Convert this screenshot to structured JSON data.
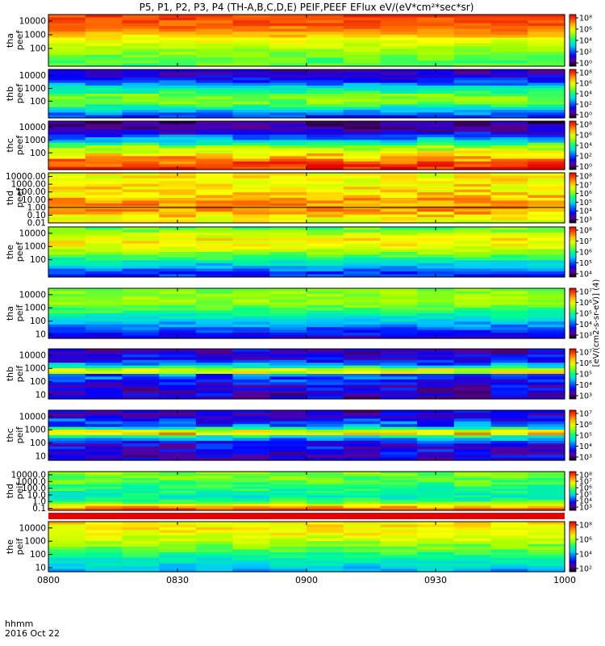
{
  "title": "P5, P1, P2, P3, P4 (TH-A,B,C,D,E) PEIF,PEEF EFlux eV/(eV*cm²*sec*sr)",
  "footer": {
    "time_format": "hhmm",
    "date": "2016 Oct 22"
  },
  "chart_data": {
    "type": "heatmap",
    "x": {
      "ticks": [
        "0800",
        "0830",
        "0900",
        "0930",
        "1000"
      ],
      "range": [
        "08:00",
        "10:00"
      ]
    },
    "colorbar_label": "[eV/(cm2-s-sr-eV)] (4)",
    "panels": [
      {
        "name": "tha peef",
        "ylabel": [
          "tha",
          "peef"
        ],
        "yticks": [
          "10000",
          "1000",
          "100"
        ],
        "ylim": [
          5,
          30000
        ],
        "scale": "log",
        "colorbar_ticks": [
          "10⁸",
          "10⁶",
          "10⁴",
          "10²",
          "10⁰"
        ],
        "profile": [
          [
            30000,
            0.92
          ],
          [
            4000,
            0.88
          ],
          [
            600,
            0.76
          ],
          [
            100,
            0.64
          ],
          [
            20,
            0.56
          ]
        ],
        "noise": 0.05,
        "line": null
      },
      {
        "name": "thb peef",
        "ylabel": [
          "thb",
          "peef"
        ],
        "yticks": [
          "10000",
          "1000",
          "100"
        ],
        "ylim": [
          5,
          30000
        ],
        "scale": "log",
        "colorbar_ticks": [
          "10⁸",
          "10⁶",
          "10⁴",
          "10²",
          "10⁰"
        ],
        "profile": [
          [
            30000,
            0.13
          ],
          [
            6000,
            0.2
          ],
          [
            1500,
            0.38
          ],
          [
            300,
            0.58
          ],
          [
            80,
            0.6
          ],
          [
            20,
            0.4
          ],
          [
            6,
            0.25
          ]
        ],
        "noise": 0.06,
        "line": null
      },
      {
        "name": "thc peef",
        "ylabel": [
          "thc",
          "peef"
        ],
        "yticks": [
          "10000",
          "1000",
          "100"
        ],
        "ylim": [
          5,
          30000
        ],
        "scale": "log",
        "colorbar_ticks": [
          "10⁸",
          "10⁶",
          "10⁴",
          "10²",
          "10⁰"
        ],
        "profile": [
          [
            30000,
            0.08
          ],
          [
            5000,
            0.15
          ],
          [
            1200,
            0.35
          ],
          [
            300,
            0.6
          ],
          [
            80,
            0.75
          ],
          [
            20,
            0.88
          ],
          [
            6,
            0.95
          ]
        ],
        "noise": 0.08,
        "line": null
      },
      {
        "name": "thd peef",
        "ylabel": [
          "thd",
          "peef"
        ],
        "yticks": [
          "10000.00",
          "1000.00",
          "100.00",
          "10.00",
          "1.00",
          "0.10",
          "0.01"
        ],
        "ylim": [
          0.01,
          30000
        ],
        "scale": "log",
        "colorbar_ticks": [
          "10⁸",
          "10⁷",
          "10⁶",
          "10⁵",
          "10⁴",
          "10³"
        ],
        "profile": [
          [
            30000,
            0.72
          ],
          [
            1000,
            0.74
          ],
          [
            50,
            0.76
          ],
          [
            5,
            0.82
          ],
          [
            0.5,
            0.84
          ],
          [
            0.01,
            0.7
          ]
        ],
        "noise": 0.07,
        "line": [
          1.0,
          1.0
        ]
      },
      {
        "name": "the peef",
        "ylabel": [
          "the",
          "peef"
        ],
        "yticks": [
          "10000",
          "1000",
          "100"
        ],
        "ylim": [
          5,
          30000
        ],
        "scale": "log",
        "colorbar_ticks": [
          "10⁸",
          "10⁷",
          "10⁶",
          "10⁵",
          "10⁴"
        ],
        "profile": [
          [
            30000,
            0.55
          ],
          [
            3000,
            0.75
          ],
          [
            800,
            0.7
          ],
          [
            200,
            0.55
          ],
          [
            50,
            0.42
          ],
          [
            10,
            0.25
          ]
        ],
        "noise": 0.06,
        "line": null
      },
      {
        "name": "tha peif",
        "ylabel": [
          "tha",
          "peif"
        ],
        "yticks": [
          "10000",
          "1000",
          "100",
          "10"
        ],
        "ylim": [
          5,
          30000
        ],
        "scale": "log",
        "colorbar_ticks": [
          "10⁷",
          "10⁶",
          "10⁵",
          "10⁴",
          "10³"
        ],
        "profile": [
          [
            30000,
            0.6
          ],
          [
            3000,
            0.62
          ],
          [
            400,
            0.5
          ],
          [
            60,
            0.35
          ],
          [
            10,
            0.22
          ],
          [
            5,
            0.15
          ]
        ],
        "noise": 0.05,
        "line": null
      },
      {
        "name": "thb peif",
        "ylabel": [
          "thb",
          "peif"
        ],
        "yticks": [
          "10000",
          "1000",
          "100",
          "10"
        ],
        "ylim": [
          5,
          30000
        ],
        "scale": "log",
        "colorbar_ticks": [
          "10⁷",
          "10⁶",
          "10⁵",
          "10⁴",
          "10³"
        ],
        "profile": [
          [
            30000,
            0.15
          ],
          [
            3000,
            0.22
          ],
          [
            1000,
            0.55
          ],
          [
            600,
            0.85
          ],
          [
            300,
            0.3
          ],
          [
            50,
            0.18
          ],
          [
            5,
            0.15
          ]
        ],
        "noise": 0.1,
        "line": null
      },
      {
        "name": "thc peif",
        "ylabel": [
          "thc",
          "peif"
        ],
        "yticks": [
          "10000",
          "1000",
          "100",
          "10"
        ],
        "ylim": [
          5,
          30000
        ],
        "scale": "log",
        "colorbar_ticks": [
          "10⁷",
          "10⁶",
          "10⁵",
          "10⁴",
          "10³"
        ],
        "profile": [
          [
            30000,
            0.15
          ],
          [
            2000,
            0.3
          ],
          [
            900,
            0.6
          ],
          [
            600,
            0.92
          ],
          [
            350,
            0.5
          ],
          [
            100,
            0.2
          ],
          [
            5,
            0.15
          ]
        ],
        "noise": 0.1,
        "line": null
      },
      {
        "name": "thd peif",
        "ylabel": [
          "thd",
          "peif"
        ],
        "yticks": [
          "10000.0",
          "1000.0",
          "100.0",
          "10.0",
          "1.0",
          "0.1"
        ],
        "ylim": [
          0.05,
          30000
        ],
        "scale": "log",
        "colorbar_ticks": [
          "10⁸",
          "10⁷",
          "10⁶",
          "10⁵",
          "10⁴",
          "10³"
        ],
        "profile": [
          [
            30000,
            0.6
          ],
          [
            1000,
            0.56
          ],
          [
            50,
            0.5
          ],
          [
            5,
            0.46
          ],
          [
            1,
            0.55
          ],
          [
            0.05,
            0.96
          ]
        ],
        "noise": 0.06,
        "line": null
      },
      {
        "name": "the peif",
        "ylabel": [
          "the",
          "peif"
        ],
        "yticks": [
          "10000",
          "1000",
          "100",
          "10"
        ],
        "ylim": [
          5,
          30000
        ],
        "scale": "log",
        "colorbar_ticks": [
          "10⁸",
          "10⁶",
          "10⁴",
          "10²"
        ],
        "profile": [
          [
            30000,
            0.75
          ],
          [
            3000,
            0.72
          ],
          [
            500,
            0.6
          ],
          [
            80,
            0.5
          ],
          [
            15,
            0.4
          ],
          [
            5,
            0.35
          ]
        ],
        "noise": 0.06,
        "line": null
      }
    ]
  }
}
